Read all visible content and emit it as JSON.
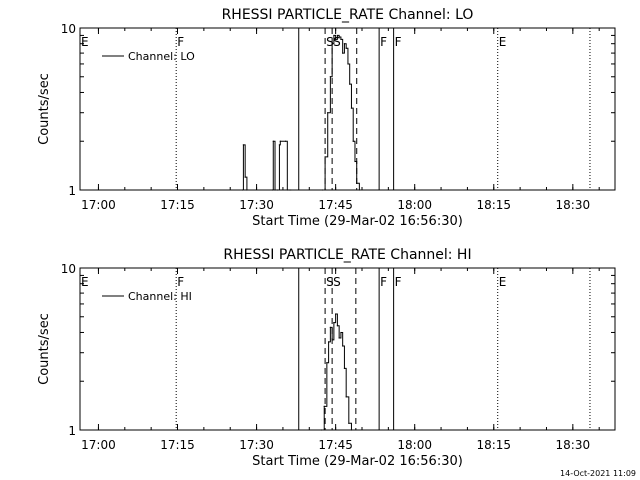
{
  "footer": {
    "timestamp": "14-Oct-2021 11:09"
  },
  "chart_data": [
    {
      "type": "line",
      "title": "RHESSI PARTICLE_RATE Channel: LO",
      "xlabel": "Start Time (29-Mar-02 16:56:30)",
      "ylabel": "Counts/sec",
      "xlim": [
        "16:56:30",
        "18:38:00"
      ],
      "ylim": [
        1,
        10
      ],
      "yscale": "log",
      "grid": false,
      "legend_position": "top-left",
      "series_colors": {
        "line": "#000000"
      },
      "x_ticks": [
        "17:00",
        "17:15",
        "17:30",
        "17:45",
        "18:00",
        "18:15",
        "18:30"
      ],
      "y_ticks": [
        "1",
        "10"
      ],
      "series": [
        {
          "name": "Channel: LO",
          "x": [
            "17:27:20",
            "17:27:30",
            "17:27:50",
            "17:28:10",
            "17:33:00",
            "17:33:10",
            "17:33:30",
            "17:34:00",
            "17:34:20",
            "17:34:30",
            "17:35:30",
            "17:35:50",
            "17:36:10",
            "17:36:30",
            "17:42:30",
            "17:43:00",
            "17:43:30",
            "17:44:00",
            "17:44:20",
            "17:44:40",
            "17:45:00",
            "17:45:20",
            "17:45:40",
            "17:46:00",
            "17:46:20",
            "17:46:40",
            "17:47:00",
            "17:47:20",
            "17:47:40",
            "17:48:00",
            "17:48:20",
            "17:48:40",
            "17:49:00",
            "17:49:30"
          ],
          "y": [
            1.0,
            1.9,
            1.2,
            1.0,
            1.0,
            2.0,
            1.0,
            1.0,
            1.9,
            2.0,
            2.0,
            1.0,
            1.0,
            1.0,
            1.0,
            1.6,
            3.0,
            5.0,
            8.0,
            9.0,
            8.5,
            9.0,
            8.8,
            8.5,
            7.0,
            8.0,
            7.5,
            6.0,
            4.5,
            3.2,
            2.0,
            1.5,
            1.1,
            1.0
          ]
        }
      ],
      "annotations": [
        {
          "label": "E",
          "x": "16:56:30",
          "style": "solid"
        },
        {
          "label": "F",
          "x": "17:14:45",
          "style": "dotted"
        },
        {
          "label": "",
          "x": "17:38:00",
          "style": "solid"
        },
        {
          "label": "S",
          "x": "17:43:00",
          "style": "dashed"
        },
        {
          "label": "S",
          "x": "17:44:20",
          "style": "dashed"
        },
        {
          "label": "",
          "x": "17:49:00",
          "style": "dashed"
        },
        {
          "label": "F",
          "x": "17:53:15",
          "style": "solid"
        },
        {
          "label": "F",
          "x": "17:56:00",
          "style": "solid"
        },
        {
          "label": "E",
          "x": "18:15:45",
          "style": "dotted"
        },
        {
          "label": "",
          "x": "18:33:15",
          "style": "dotted"
        }
      ]
    },
    {
      "type": "line",
      "title": "RHESSI PARTICLE_RATE Channel: HI",
      "xlabel": "Start Time (29-Mar-02 16:56:30)",
      "ylabel": "Counts/sec",
      "xlim": [
        "16:56:30",
        "18:38:00"
      ],
      "ylim": [
        1,
        10
      ],
      "yscale": "log",
      "grid": false,
      "legend_position": "top-left",
      "series_colors": {
        "line": "#000000"
      },
      "x_ticks": [
        "17:00",
        "17:15",
        "17:30",
        "17:45",
        "18:00",
        "18:15",
        "18:30"
      ],
      "y_ticks": [
        "1",
        "10"
      ],
      "series": [
        {
          "name": "Channel: HI",
          "x": [
            "17:42:20",
            "17:42:50",
            "17:43:20",
            "17:43:40",
            "17:44:00",
            "17:44:20",
            "17:44:40",
            "17:45:00",
            "17:45:20",
            "17:45:40",
            "17:46:00",
            "17:46:20",
            "17:46:40",
            "17:47:00",
            "17:47:30",
            "17:48:00"
          ],
          "y": [
            1.0,
            1.4,
            2.6,
            3.5,
            4.3,
            3.6,
            4.6,
            5.2,
            4.4,
            3.7,
            4.0,
            3.3,
            2.4,
            1.6,
            1.1,
            1.0
          ]
        }
      ],
      "annotations": [
        {
          "label": "E",
          "x": "16:56:30",
          "style": "solid"
        },
        {
          "label": "F",
          "x": "17:14:45",
          "style": "dotted"
        },
        {
          "label": "",
          "x": "17:38:00",
          "style": "solid"
        },
        {
          "label": "S",
          "x": "17:43:00",
          "style": "dashed"
        },
        {
          "label": "S",
          "x": "17:44:20",
          "style": "dashed"
        },
        {
          "label": "",
          "x": "17:48:50",
          "style": "dashed"
        },
        {
          "label": "F",
          "x": "17:53:15",
          "style": "solid"
        },
        {
          "label": "F",
          "x": "17:56:00",
          "style": "solid"
        },
        {
          "label": "E",
          "x": "18:15:45",
          "style": "dotted"
        },
        {
          "label": "",
          "x": "18:33:15",
          "style": "dotted"
        }
      ]
    }
  ]
}
